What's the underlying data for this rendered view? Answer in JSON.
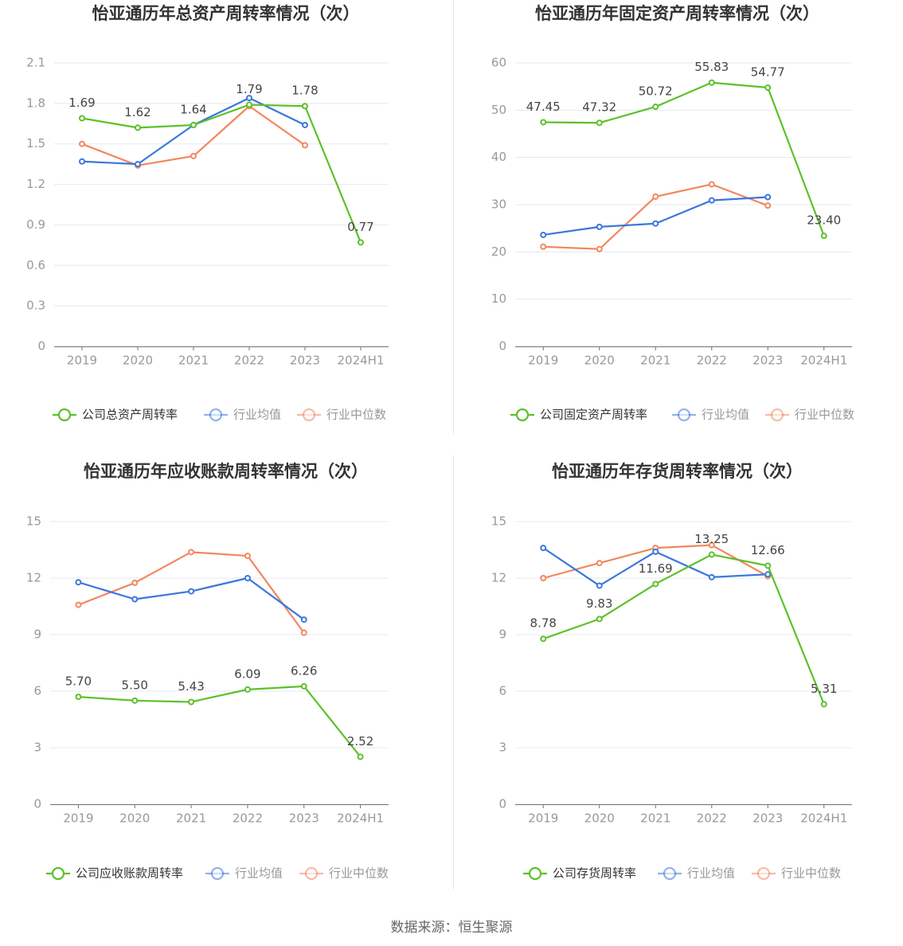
{
  "colors": {
    "company": "#5cc12a",
    "avg": "#3a77db",
    "median": "#f2875e",
    "axis": "#999999",
    "grid": "#e4e8f0",
    "title": "#333333"
  },
  "icon": "legend-circle-icon",
  "source": "数据来源：恒生聚源",
  "chart_data": [
    {
      "type": "line",
      "title": "怡亚通历年总资产周转率情况（次）",
      "categories": [
        "2019",
        "2020",
        "2021",
        "2022",
        "2023",
        "2024H1"
      ],
      "yticks": [
        "0",
        "0.3",
        "0.6",
        "0.9",
        "1.2",
        "1.5",
        "1.8",
        "2.1"
      ],
      "ylim": [
        0,
        2.1
      ],
      "grid": true,
      "legend_position": "bottom",
      "series": [
        {
          "name": "公司总资产周转率",
          "values": [
            1.69,
            1.62,
            1.64,
            1.79,
            1.78,
            0.77
          ],
          "labels": [
            "1.69",
            "1.62",
            "1.64",
            "1.79",
            "1.78",
            "0.77"
          ]
        },
        {
          "name": "行业均值",
          "values": [
            1.37,
            1.35,
            1.64,
            1.84,
            1.64,
            null
          ]
        },
        {
          "name": "行业中位数",
          "values": [
            1.5,
            1.34,
            1.41,
            1.78,
            1.49,
            null
          ]
        }
      ]
    },
    {
      "type": "line",
      "title": "怡亚通历年固定资产周转率情况（次）",
      "categories": [
        "2019",
        "2020",
        "2021",
        "2022",
        "2023",
        "2024H1"
      ],
      "yticks": [
        "0",
        "10",
        "20",
        "30",
        "40",
        "50",
        "60"
      ],
      "ylim": [
        0,
        60
      ],
      "grid": true,
      "legend_position": "bottom",
      "series": [
        {
          "name": "公司固定资产周转率",
          "values": [
            47.45,
            47.32,
            50.72,
            55.83,
            54.77,
            23.4
          ],
          "labels": [
            "47.45",
            "47.32",
            "50.72",
            "55.83",
            "54.77",
            "23.40"
          ]
        },
        {
          "name": "行业均值",
          "values": [
            23.6,
            25.3,
            26.0,
            30.9,
            31.6,
            null
          ]
        },
        {
          "name": "行业中位数",
          "values": [
            21.1,
            20.6,
            31.7,
            34.3,
            29.8,
            null
          ]
        }
      ]
    },
    {
      "type": "line",
      "title": "怡亚通历年应收账款周转率情况（次）",
      "categories": [
        "2019",
        "2020",
        "2021",
        "2022",
        "2023",
        "2024H1"
      ],
      "yticks": [
        "0",
        "3",
        "6",
        "9",
        "12",
        "15"
      ],
      "ylim": [
        0,
        15
      ],
      "grid": true,
      "legend_position": "bottom",
      "series": [
        {
          "name": "公司应收账款周转率",
          "values": [
            5.7,
            5.5,
            5.43,
            6.09,
            6.26,
            2.52
          ],
          "labels": [
            "5.70",
            "5.50",
            "5.43",
            "6.09",
            "6.26",
            "2.52"
          ]
        },
        {
          "name": "行业均值",
          "values": [
            11.78,
            10.88,
            11.3,
            12.0,
            9.8,
            null
          ]
        },
        {
          "name": "行业中位数",
          "values": [
            10.58,
            11.75,
            13.38,
            13.18,
            9.1,
            null
          ]
        }
      ]
    },
    {
      "type": "line",
      "title": "怡亚通历年存货周转率情况（次）",
      "categories": [
        "2019",
        "2020",
        "2021",
        "2022",
        "2023",
        "2024H1"
      ],
      "yticks": [
        "0",
        "3",
        "6",
        "9",
        "12",
        "15"
      ],
      "ylim": [
        0,
        15
      ],
      "grid": true,
      "legend_position": "bottom",
      "series": [
        {
          "name": "公司存货周转率",
          "values": [
            8.78,
            9.83,
            11.69,
            13.25,
            12.66,
            5.31
          ],
          "labels": [
            "8.78",
            "9.83",
            "11.69",
            "13.25",
            "12.66",
            "5.31"
          ]
        },
        {
          "name": "行业均值",
          "values": [
            13.6,
            11.6,
            13.4,
            12.05,
            12.2,
            null
          ]
        },
        {
          "name": "行业中位数",
          "values": [
            12.0,
            12.8,
            13.6,
            13.75,
            12.1,
            null
          ]
        }
      ]
    }
  ]
}
